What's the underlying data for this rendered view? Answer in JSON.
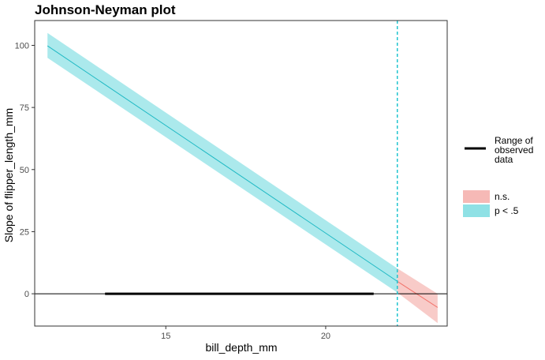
{
  "chart_data": {
    "type": "line",
    "title": "Johnson-Neyman plot",
    "xlabel": "bill_depth_mm",
    "ylabel": "Slope of flipper_length_mm",
    "xlim": [
      10.9,
      23.8
    ],
    "ylim": [
      -13,
      110
    ],
    "xticks": [
      15,
      20
    ],
    "yticks": [
      0,
      25,
      50,
      75,
      100
    ],
    "grid": false,
    "legend_position": "right",
    "jn_point": 22.24,
    "colors": {
      "significant_fill": "#8fe1e5",
      "significant_line": "#1fb9c4",
      "ns_fill": "#f6b9b6",
      "ns_line": "#f2736b",
      "observed_range": "#000000",
      "jn_line": "#20c4cf"
    },
    "series": [
      {
        "name": "p < .5",
        "x": [
          11.3,
          22.24
        ],
        "y": [
          99.8,
          5.0
        ],
        "ci_low": [
          95.0,
          0.5
        ],
        "ci_high": [
          105.0,
          10.2
        ]
      },
      {
        "name": "n.s.",
        "x": [
          22.24,
          23.5
        ],
        "y": [
          5.0,
          -5.5
        ],
        "ci_low": [
          0.5,
          -11.8
        ],
        "ci_high": [
          10.2,
          0.0
        ]
      }
    ],
    "observed_range": {
      "name": "Range of observed data",
      "x": [
        13.1,
        21.5
      ],
      "y": 0
    },
    "legend": {
      "range_label_lines": [
        "Range of",
        "observed",
        "data"
      ],
      "ns_label": "n.s.",
      "sig_label": "p < .5"
    }
  }
}
